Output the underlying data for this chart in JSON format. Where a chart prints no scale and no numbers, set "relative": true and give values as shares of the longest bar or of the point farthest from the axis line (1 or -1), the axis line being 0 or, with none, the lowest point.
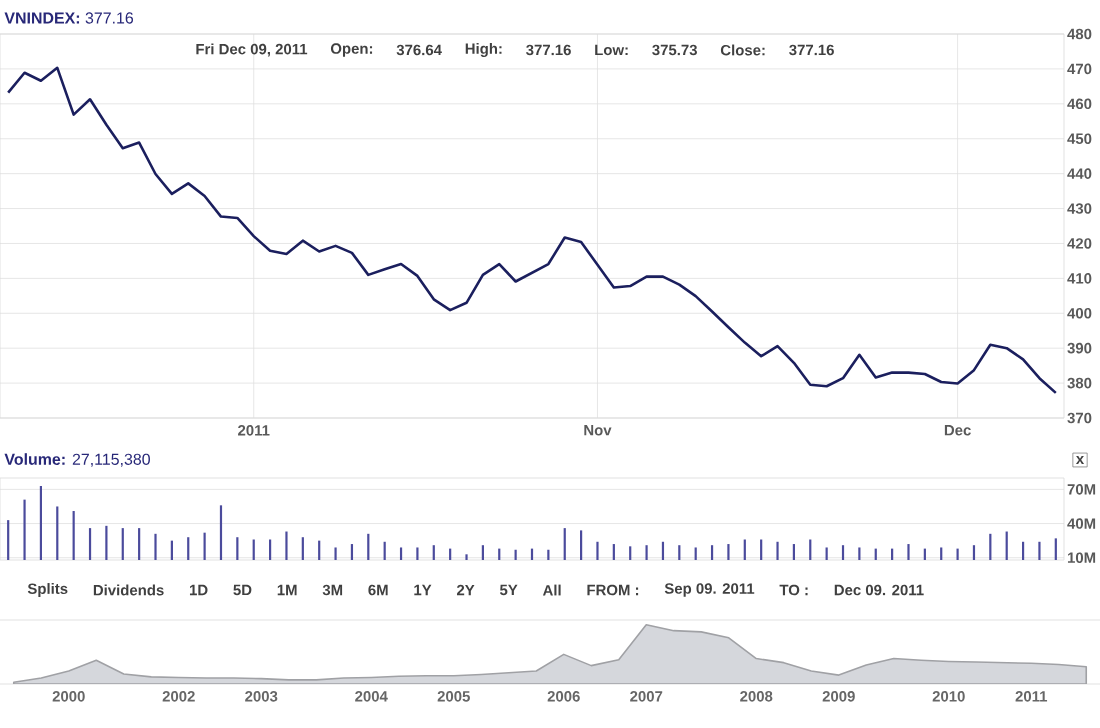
{
  "chart_data": [
    {
      "type": "line",
      "title": "**VNINDEX:** 377.16",
      "annotations": [
        "Fri Dec 09, 2011",
        "**Open:**",
        "376.64",
        "**High:**",
        "377.16",
        "**Low:**",
        "375.73",
        "**Close:**",
        "377.16"
      ],
      "categories": [
        null,
        null,
        null,
        null,
        null,
        null,
        null,
        null,
        null,
        null,
        null,
        null,
        null,
        null,
        null,
        "2011",
        null,
        null,
        null,
        null,
        null,
        null,
        null,
        null,
        null,
        null,
        null,
        null,
        null,
        null,
        null,
        null,
        null,
        null,
        null,
        null,
        "Nov",
        null,
        null,
        null,
        null,
        null,
        null,
        null,
        null,
        null,
        null,
        null,
        null,
        null,
        null,
        null,
        null,
        null,
        null,
        null,
        null,
        null,
        "Dec",
        null,
        null,
        null,
        null,
        null,
        null
      ],
      "series": [
        {
          "color": "#1b1f5e",
          "values": [
            463.2,
            468.9,
            466.6,
            470.3,
            456.9,
            461.3,
            454.0,
            447.3,
            448.9,
            439.9,
            434.2,
            437.2,
            433.6,
            427.7,
            427.3,
            422.1,
            417.9,
            417.0,
            420.8,
            417.7,
            419.3,
            417.3,
            411.0,
            412.6,
            414.1,
            410.7,
            404.0,
            400.9,
            403.0,
            411.0,
            414.1,
            409.1,
            411.6,
            414.1,
            421.7,
            420.4,
            413.9,
            407.4,
            407.8,
            410.5,
            410.5,
            408.2,
            404.9,
            400.5,
            396.0,
            391.6,
            387.7,
            390.6,
            385.8,
            379.5,
            379.1,
            381.4,
            388.1,
            381.6,
            383.0,
            383.0,
            382.6,
            380.3,
            379.9,
            383.7,
            391.0,
            390.0,
            386.8,
            381.4,
            377.2
          ]
        }
      ],
      "ylim": [
        370,
        480
      ],
      "yticks": [
        370,
        380,
        390,
        400,
        410,
        420,
        430,
        440,
        450,
        460,
        470,
        480
      ],
      "grid": true,
      "legend": false
    },
    {
      "type": "bar",
      "title": "**Volume:** 27,115,380",
      "annotations": [
        "x"
      ],
      "categories": [
        null,
        null,
        null,
        null,
        null,
        null,
        null,
        null,
        null,
        null,
        null,
        null,
        null,
        null,
        null,
        null,
        null,
        null,
        null,
        null,
        null,
        null,
        null,
        null,
        null,
        null,
        null,
        null,
        null,
        null,
        null,
        null,
        null,
        null,
        null,
        null,
        null,
        null,
        null,
        null,
        null,
        null,
        null,
        null,
        null,
        null,
        null,
        null,
        null,
        null,
        null,
        null,
        null,
        null,
        null,
        null,
        null,
        null,
        null,
        null,
        null,
        null,
        null,
        null,
        null
      ],
      "series": [
        {
          "color": "#4b4b9c",
          "values": [
            43,
            61,
            73,
            55,
            51,
            36,
            38,
            36,
            36,
            31,
            25,
            28,
            32,
            56,
            28,
            26,
            26,
            33,
            28,
            25,
            19,
            22,
            31,
            24,
            19,
            19,
            21,
            18,
            13,
            21,
            18,
            17,
            18,
            17,
            36,
            34,
            24,
            22,
            20,
            21,
            24,
            21,
            19,
            21,
            22,
            26,
            26,
            24,
            22,
            26,
            19,
            21,
            19,
            18,
            18,
            22,
            18,
            19,
            18,
            21,
            31,
            33,
            24,
            24,
            27
          ]
        }
      ],
      "ylim": [
        8,
        80
      ],
      "yticks": [
        {
          "value": 10,
          "label": "10M"
        },
        {
          "value": 40,
          "label": "40M"
        },
        {
          "value": 70,
          "label": "70M"
        }
      ],
      "grid": "y",
      "legend": false
    },
    {
      "type": "area",
      "relative": true,
      "annotations": [
        "Splits",
        "Dividends",
        "1D",
        "5D",
        "1M",
        "3M",
        "6M",
        "1Y",
        "2Y",
        "5Y",
        "All",
        "FROM :",
        "Sep 09. 2011",
        "TO :",
        "Dec 09. 2011"
      ],
      "categories": [
        null,
        null,
        "2000",
        null,
        null,
        null,
        "2002",
        null,
        null,
        "2003",
        null,
        null,
        null,
        "2004",
        null,
        null,
        "2005",
        null,
        null,
        null,
        "2006",
        null,
        null,
        "2007",
        null,
        null,
        null,
        "2008",
        null,
        null,
        "2009",
        null,
        null,
        null,
        "2010",
        null,
        null,
        "2011",
        null,
        null
      ],
      "series": [
        {
          "color": "#d5d7dc",
          "values": [
            0.03,
            0.1,
            0.22,
            0.4,
            0.17,
            0.12,
            0.11,
            0.1,
            0.1,
            0.09,
            0.07,
            0.07,
            0.1,
            0.11,
            0.13,
            0.14,
            0.14,
            0.16,
            0.19,
            0.22,
            0.5,
            0.31,
            0.41,
            1.0,
            0.9,
            0.88,
            0.78,
            0.43,
            0.36,
            0.22,
            0.15,
            0.32,
            0.43,
            0.4,
            0.38,
            0.37,
            0.36,
            0.35,
            0.33,
            0.29
          ]
        }
      ],
      "legend": false
    }
  ]
}
